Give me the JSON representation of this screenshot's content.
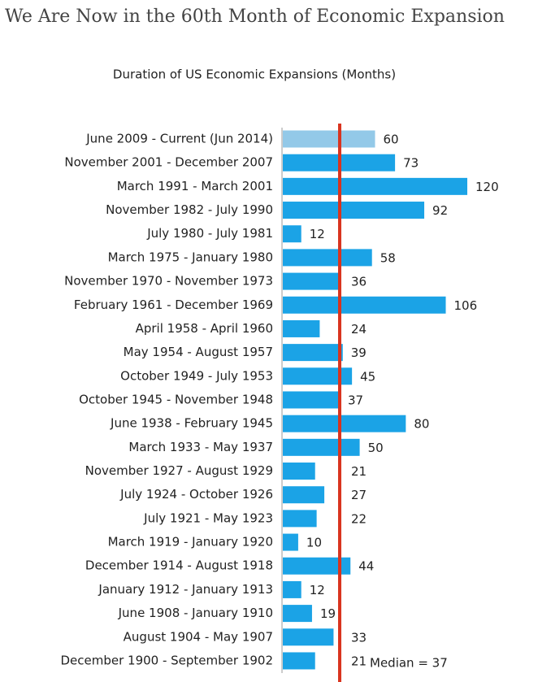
{
  "chart_data": {
    "type": "bar",
    "orientation": "horizontal",
    "title": "We Are Now in the 60th Month of Economic Expansion",
    "subtitle": "Duration of US Economic Expansions (Months)",
    "categories": [
      "June 2009 - Current (Jun 2014)",
      "November 2001 - December 2007",
      "March 1991 - March 2001",
      "November 1982 - July 1990",
      "July 1980 - July 1981",
      "March 1975 - January 1980",
      "November 1970 - November 1973",
      "February 1961 - December 1969",
      "April 1958 - April 1960",
      "May 1954 - August 1957",
      "October 1949 - July 1953",
      "October 1945 - November 1948",
      "June 1938 - February 1945",
      "March 1933 - May 1937",
      "November 1927 - August 1929",
      "July 1924 - October 1926",
      "July 1921 - May 1923",
      "March 1919 - January 1920",
      "December 1914 - August 1918",
      "January 1912 - January 1913",
      "June 1908 - January 1910",
      "August 1904 - May 1907",
      "December 1900 - September 1902"
    ],
    "values": [
      60,
      73,
      120,
      92,
      12,
      58,
      36,
      106,
      24,
      39,
      45,
      37,
      80,
      50,
      21,
      27,
      22,
      10,
      44,
      12,
      19,
      33,
      21
    ],
    "colors": [
      "#93c9e8",
      "#1ba3e6",
      "#1ba3e6",
      "#1ba3e6",
      "#1ba3e6",
      "#1ba3e6",
      "#1ba3e6",
      "#1ba3e6",
      "#1ba3e6",
      "#1ba3e6",
      "#1ba3e6",
      "#1ba3e6",
      "#1ba3e6",
      "#1ba3e6",
      "#1ba3e6",
      "#1ba3e6",
      "#1ba3e6",
      "#1ba3e6",
      "#1ba3e6",
      "#1ba3e6",
      "#1ba3e6",
      "#1ba3e6",
      "#1ba3e6"
    ],
    "reference_line": {
      "value": 37,
      "label": "Median = 37",
      "color": "#d9341f"
    }
  }
}
